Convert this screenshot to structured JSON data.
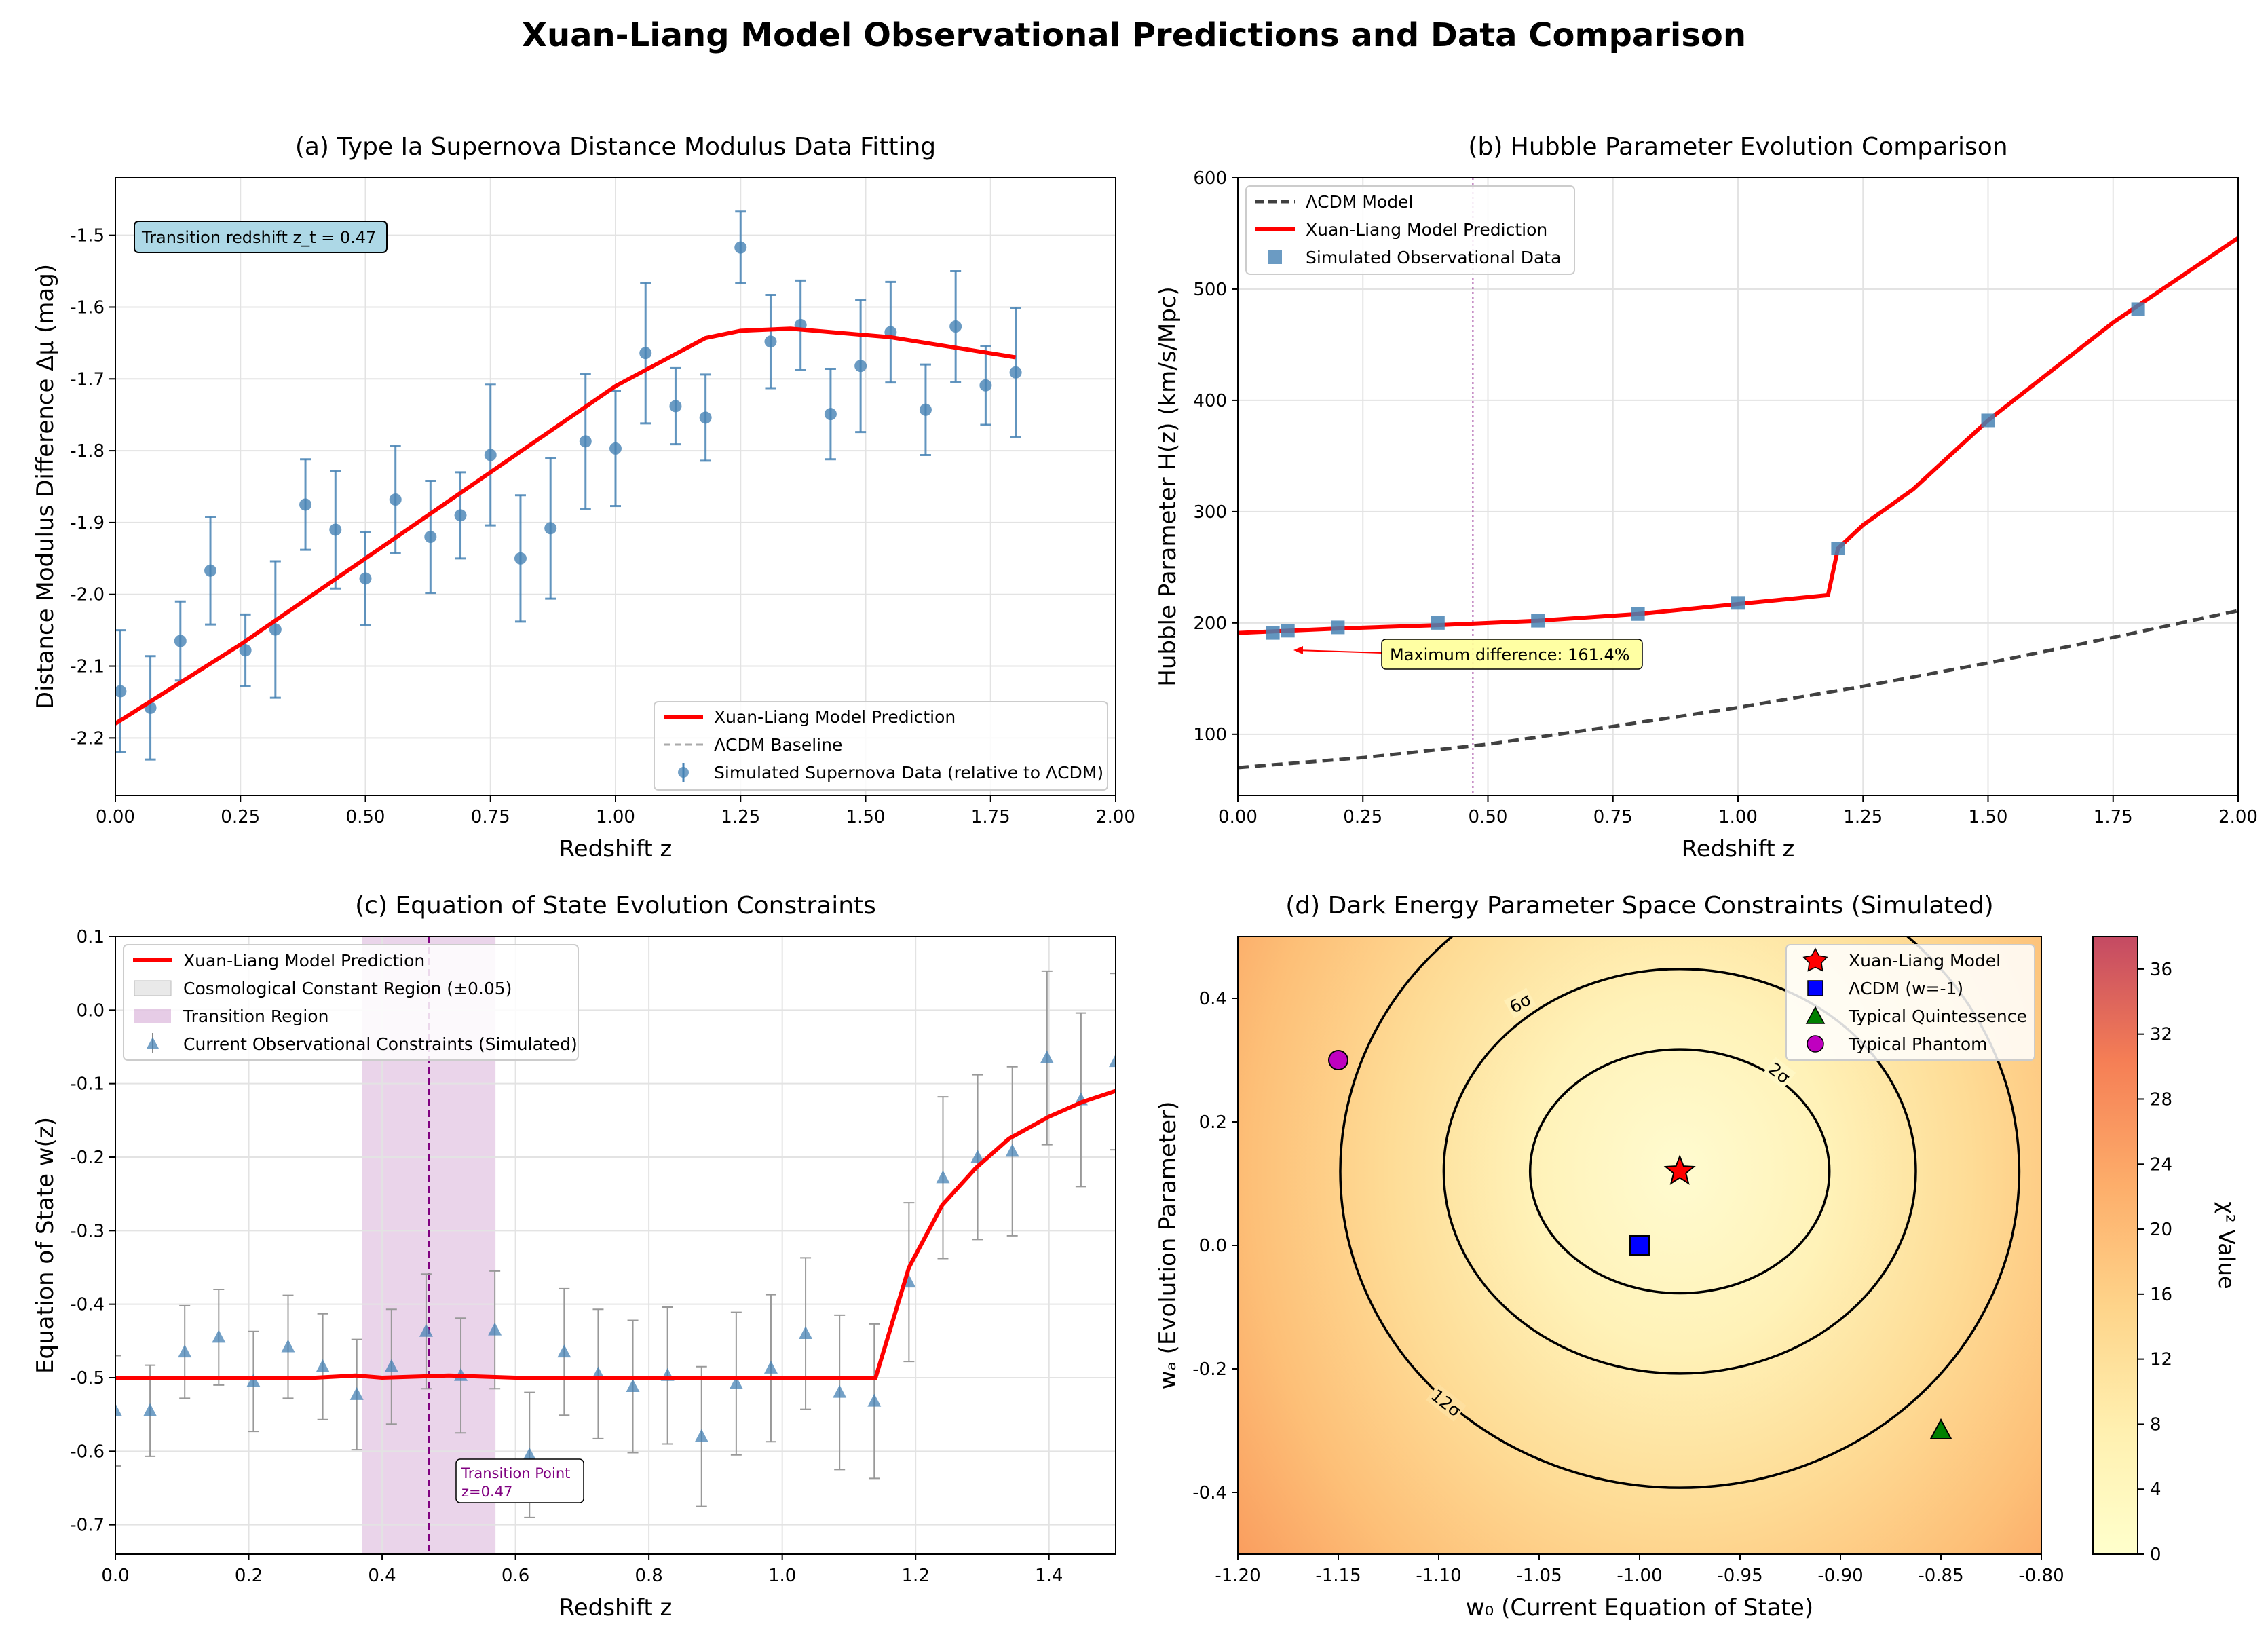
{
  "suptitle": "Xuan-Liang Model Observational Predictions and Data Comparison",
  "colors": {
    "model": "#ff0000",
    "lcdm": "#404040",
    "data": "#4682b4",
    "transition": "#800080"
  },
  "chart_data": [
    {
      "id": "a",
      "type": "scatter",
      "title": "(a) Type Ia Supernova Distance Modulus Data Fitting",
      "xlabel": "Redshift z",
      "ylabel": "Distance Modulus Difference Δμ (mag)",
      "xlim": [
        0,
        2.0
      ],
      "ylim": [
        -2.28,
        -1.42
      ],
      "xticks": [
        "0.00",
        "0.25",
        "0.50",
        "0.75",
        "1.00",
        "1.25",
        "1.50",
        "1.75",
        "2.00"
      ],
      "yticks": [
        "-2.2",
        "-2.1",
        "-2.0",
        "-1.9",
        "-1.8",
        "-1.7",
        "-1.6",
        "-1.5"
      ],
      "grid": true,
      "legend_position": "lower right",
      "legend": [
        "Xuan-Liang Model Prediction",
        "ΛCDM Baseline",
        "Simulated Supernova Data (relative to ΛCDM)"
      ],
      "annotation": "Transition redshift z_t = 0.47",
      "model_curve": {
        "x": [
          0,
          0.25,
          0.5,
          0.75,
          1.0,
          1.18,
          1.25,
          1.35,
          1.55,
          1.8
        ],
        "y": [
          -2.18,
          -2.07,
          -1.95,
          -1.83,
          -1.71,
          -1.643,
          -1.633,
          -1.63,
          -1.642,
          -1.67
        ]
      },
      "data_points": {
        "x": [
          0.01,
          0.07,
          0.13,
          0.19,
          0.26,
          0.32,
          0.38,
          0.44,
          0.5,
          0.56,
          0.63,
          0.69,
          0.75,
          0.81,
          0.87,
          0.94,
          1.0,
          1.06,
          1.12,
          1.18,
          1.25,
          1.31,
          1.37,
          1.43,
          1.49,
          1.55,
          1.62,
          1.68,
          1.74,
          1.8
        ],
        "y": [
          -2.135,
          -2.158,
          -2.065,
          -1.967,
          -2.078,
          -2.049,
          -1.875,
          -1.91,
          -1.978,
          -1.868,
          -1.92,
          -1.89,
          -1.806,
          -1.95,
          -1.908,
          -1.787,
          -1.797,
          -1.664,
          -1.738,
          -1.754,
          -1.517,
          -1.648,
          -1.625,
          -1.749,
          -1.682,
          -1.635,
          -1.743,
          -1.627,
          -1.709,
          -1.691
        ],
        "err": [
          0.085,
          0.072,
          0.055,
          0.075,
          0.05,
          0.095,
          0.063,
          0.082,
          0.065,
          0.075,
          0.078,
          0.06,
          0.098,
          0.088,
          0.098,
          0.094,
          0.08,
          0.098,
          0.053,
          0.06,
          0.05,
          0.065,
          0.062,
          0.063,
          0.092,
          0.07,
          0.063,
          0.077,
          0.055,
          0.09
        ]
      }
    },
    {
      "id": "b",
      "type": "line",
      "title": "(b) Hubble Parameter Evolution Comparison",
      "xlabel": "Redshift z",
      "ylabel": "Hubble Parameter H(z) (km/s/Mpc)",
      "xlim": [
        0,
        2.0
      ],
      "ylim": [
        45,
        600
      ],
      "xticks": [
        "0.00",
        "0.25",
        "0.50",
        "0.75",
        "1.00",
        "1.25",
        "1.50",
        "1.75",
        "2.00"
      ],
      "yticks": [
        "100",
        "200",
        "300",
        "400",
        "500",
        "600"
      ],
      "grid": true,
      "legend_position": "upper left",
      "legend": [
        "ΛCDM Model",
        "Xuan-Liang Model Prediction",
        "Simulated Observational Data"
      ],
      "annotation": "Maximum difference: 161.4%",
      "transition_z": 0.47,
      "lcdm_curve": {
        "x": [
          0,
          0.25,
          0.5,
          0.75,
          1.0,
          1.25,
          1.5,
          1.75,
          2.0
        ],
        "y": [
          70,
          79,
          91,
          107,
          124,
          143,
          164,
          187,
          211
        ]
      },
      "model_curve": {
        "x": [
          0,
          0.2,
          0.4,
          0.6,
          0.8,
          1.0,
          1.18,
          1.2,
          1.25,
          1.35,
          1.5,
          1.75,
          2.0
        ],
        "y": [
          191,
          195,
          198,
          202,
          208,
          217,
          225,
          267,
          288,
          320,
          382,
          470,
          546
        ]
      },
      "data_points": {
        "x": [
          0.07,
          0.1,
          0.2,
          0.4,
          0.6,
          0.8,
          1.0,
          1.2,
          1.5,
          1.8
        ],
        "y": [
          191,
          193,
          196,
          200,
          202,
          208,
          218,
          267,
          382,
          482
        ]
      }
    },
    {
      "id": "c",
      "type": "line",
      "title": "(c) Equation of State Evolution Constraints",
      "xlabel": "Redshift z",
      "ylabel": "Equation of State w(z)",
      "xlim": [
        0,
        1.5
      ],
      "ylim": [
        -0.74,
        0.1
      ],
      "xticks": [
        "0.0",
        "0.2",
        "0.4",
        "0.6",
        "0.8",
        "1.0",
        "1.2",
        "1.4"
      ],
      "yticks": [
        "-0.7",
        "-0.6",
        "-0.5",
        "-0.4",
        "-0.3",
        "-0.2",
        "-0.1",
        "0.0",
        "0.1"
      ],
      "grid": true,
      "legend_position": "upper left",
      "legend": [
        "Xuan-Liang Model Prediction",
        "Cosmological Constant Region (±0.05)",
        "Transition Region",
        "Current Observational Constraints (Simulated)"
      ],
      "annotation": [
        "Transition Point",
        "z=0.47"
      ],
      "transition_z": 0.47,
      "transition_region": [
        0.37,
        0.57
      ],
      "model_curve": {
        "x": [
          0,
          0.3,
          0.36,
          0.4,
          0.5,
          0.6,
          0.8,
          1.0,
          1.14,
          1.19,
          1.24,
          1.29,
          1.34,
          1.4,
          1.45,
          1.5
        ],
        "y": [
          -0.5,
          -0.5,
          -0.497,
          -0.5,
          -0.497,
          -0.5,
          -0.5,
          -0.5,
          -0.5,
          -0.35,
          -0.265,
          -0.215,
          -0.175,
          -0.145,
          -0.125,
          -0.11
        ]
      },
      "data_points": {
        "x": [
          0.0,
          0.052,
          0.104,
          0.155,
          0.207,
          0.259,
          0.311,
          0.362,
          0.414,
          0.466,
          0.518,
          0.569,
          0.621,
          0.673,
          0.724,
          0.776,
          0.828,
          0.879,
          0.931,
          0.983,
          1.035,
          1.086,
          1.138,
          1.19,
          1.241,
          1.293,
          1.345,
          1.397,
          1.448,
          1.5
        ],
        "y": [
          -0.545,
          -0.545,
          -0.465,
          -0.445,
          -0.505,
          -0.458,
          -0.485,
          -0.523,
          -0.485,
          -0.437,
          -0.497,
          -0.435,
          -0.605,
          -0.465,
          -0.495,
          -0.512,
          -0.497,
          -0.58,
          -0.508,
          -0.487,
          -0.44,
          -0.52,
          -0.532,
          -0.37,
          -0.228,
          -0.2,
          -0.192,
          -0.065,
          -0.122,
          -0.07
        ],
        "err": [
          0.075,
          0.062,
          0.063,
          0.065,
          0.068,
          0.07,
          0.072,
          0.075,
          0.078,
          0.078,
          0.078,
          0.08,
          0.085,
          0.086,
          0.088,
          0.09,
          0.093,
          0.095,
          0.097,
          0.1,
          0.103,
          0.105,
          0.105,
          0.108,
          0.11,
          0.112,
          0.115,
          0.118,
          0.118,
          0.12
        ]
      }
    },
    {
      "id": "d",
      "type": "heatmap",
      "title": "(d) Dark Energy Parameter Space Constraints (Simulated)",
      "xlabel": "w₀ (Current Equation of State)",
      "ylabel": "wₐ (Evolution Parameter)",
      "xlim": [
        -1.2,
        -0.8
      ],
      "ylim": [
        -0.5,
        0.5
      ],
      "xticks": [
        "-1.20",
        "-1.15",
        "-1.10",
        "-1.05",
        "-1.00",
        "-0.95",
        "-0.90",
        "-0.85",
        "-0.80"
      ],
      "yticks": [
        "-0.4",
        "-0.2",
        "0.0",
        "0.2",
        "0.4"
      ],
      "colorbar_label": "χ² Value",
      "colorbar_ticks": [
        "0",
        "4",
        "8",
        "12",
        "16",
        "20",
        "24",
        "28",
        "32",
        "36"
      ],
      "colorbar_range": [
        0,
        38
      ],
      "center": [
        -0.98,
        0.12
      ],
      "contours": [
        {
          "label": "2σ",
          "rx": 0.0745,
          "ry": 0.1975
        },
        {
          "label": "6σ",
          "rx": 0.1175,
          "ry": 0.3275
        },
        {
          "label": "12σ",
          "rx": 0.169,
          "ry": 0.5125
        }
      ],
      "legend_position": "upper right",
      "markers": [
        {
          "label": "Xuan-Liang Model",
          "shape": "star",
          "color": "#ff0000",
          "x": -0.98,
          "y": 0.12
        },
        {
          "label": "ΛCDM (w=-1)",
          "shape": "square",
          "color": "#0000ff",
          "x": -1.0,
          "y": 0.0
        },
        {
          "label": "Typical Quintessence",
          "shape": "triangle",
          "color": "#008000",
          "x": -0.85,
          "y": -0.3
        },
        {
          "label": "Typical Phantom",
          "shape": "circle",
          "color": "#bf00bf",
          "x": -1.15,
          "y": 0.3
        }
      ]
    }
  ]
}
